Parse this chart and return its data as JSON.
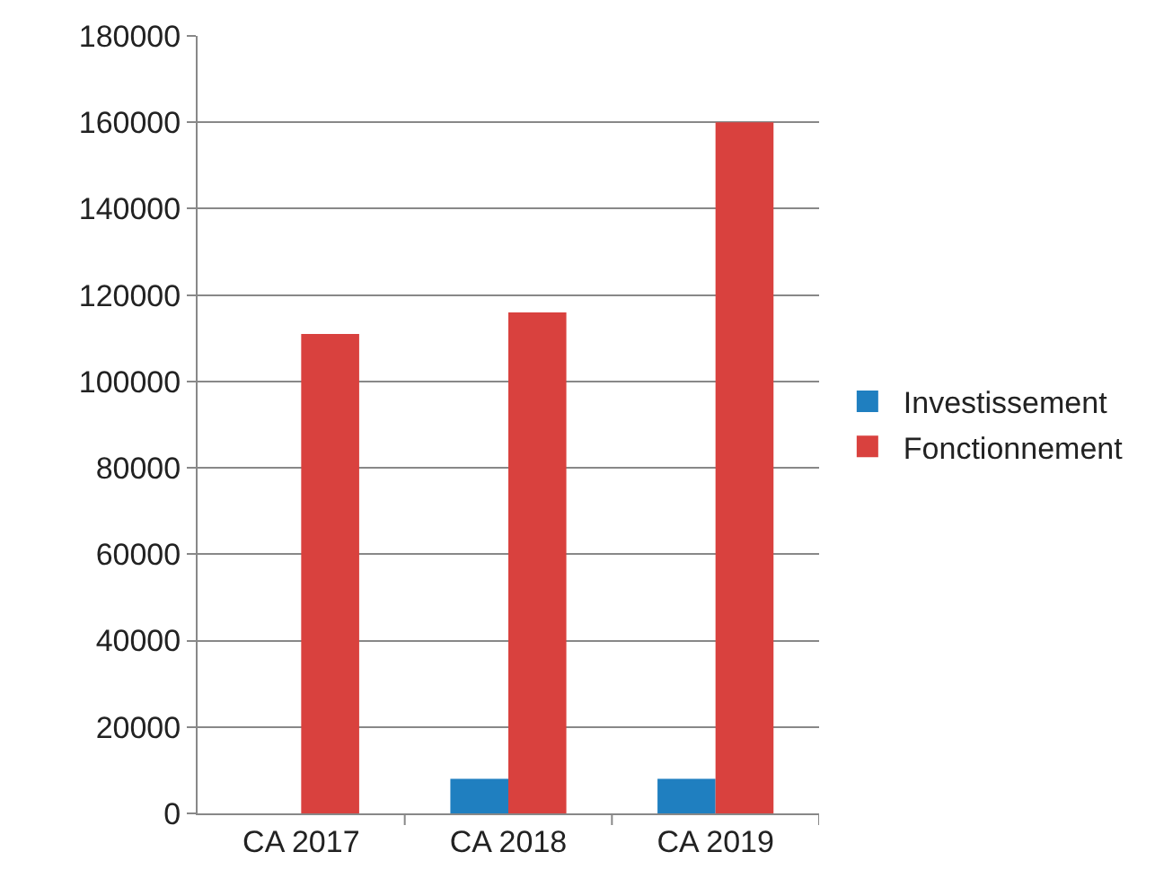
{
  "chart_data": {
    "type": "bar",
    "categories": [
      "CA 2017",
      "CA 2018",
      "CA 2019"
    ],
    "series": [
      {
        "name": "Investissement",
        "color": "#1f7fc0",
        "values": [
          null,
          8000,
          8000
        ]
      },
      {
        "name": "Fonctionnement",
        "color": "#d9413e",
        "values": [
          111000,
          116000,
          160000
        ]
      }
    ],
    "ylim": [
      0,
      180000
    ],
    "yticks": [
      0,
      20000,
      40000,
      60000,
      80000,
      100000,
      120000,
      140000,
      160000,
      180000
    ],
    "grid": "y",
    "legend": "right"
  }
}
